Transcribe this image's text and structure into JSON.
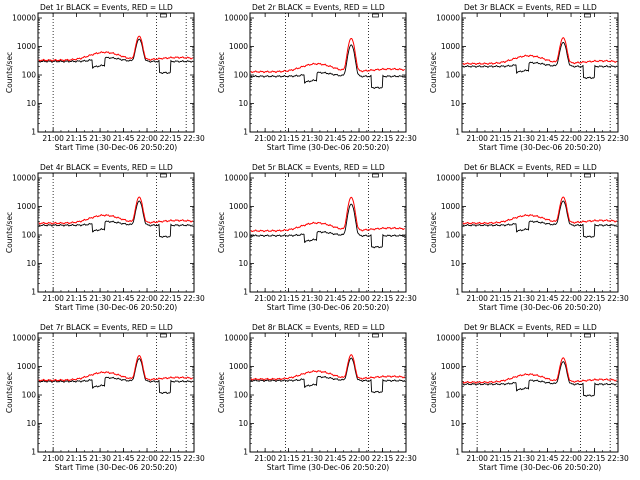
{
  "chart_data": {
    "type": "line",
    "grid": "3x3",
    "y_scale": "log",
    "ylim": [
      1,
      15000
    ],
    "xlim": [
      "20:50:20",
      "22:30:00"
    ],
    "yticks": [
      1,
      10,
      100,
      1000,
      10000
    ],
    "ytick_labels": [
      "1",
      "10",
      "100",
      "1000",
      "10000"
    ],
    "xtick_labels": [
      "21:00",
      "21:15",
      "21:30",
      "21:45",
      "22:00",
      "22:15",
      "22:30"
    ],
    "ylabel": "Counts/sec",
    "xlabel": "Start Time (30-Dec-06 20:50:20)",
    "series_colors": {
      "Events": "#000000",
      "LLD": "#ff0000"
    },
    "panels": [
      {
        "title": "Det 1r BLACK = Events, RED = LLD",
        "events_level": 300,
        "lld_level": 330,
        "peak": 2200,
        "markers": [
          "21:00",
          "22:06",
          "22:25"
        ]
      },
      {
        "title": "Det 2r BLACK = Events, RED = LLD",
        "events_level": 90,
        "lld_level": 130,
        "peak": 1400,
        "markers": [
          "21:13",
          "22:06"
        ]
      },
      {
        "title": "Det 3r BLACK = Events, RED = LLD",
        "events_level": 200,
        "lld_level": 250,
        "peak": 1700,
        "markers": [
          "22:06",
          "22:25"
        ]
      },
      {
        "title": "Det 4r BLACK = Events, RED = LLD",
        "events_level": 220,
        "lld_level": 260,
        "peak": 1900,
        "markers": [
          "21:00",
          "22:06"
        ]
      },
      {
        "title": "Det 5r BLACK = Events, RED = LLD",
        "events_level": 95,
        "lld_level": 140,
        "peak": 1500,
        "markers": [
          "21:13",
          "22:06"
        ]
      },
      {
        "title": "Det 6r BLACK = Events, RED = LLD",
        "events_level": 220,
        "lld_level": 260,
        "peak": 1900,
        "markers": [
          "22:06",
          "22:25"
        ]
      },
      {
        "title": "Det 7r BLACK = Events, RED = LLD",
        "events_level": 300,
        "lld_level": 330,
        "peak": 2300,
        "markers": [
          "21:00",
          "22:06",
          "22:25"
        ]
      },
      {
        "title": "Det 8r BLACK = Events, RED = LLD",
        "events_level": 320,
        "lld_level": 360,
        "peak": 2400,
        "markers": [
          "21:13",
          "22:06"
        ]
      },
      {
        "title": "Det 9r BLACK = Events, RED = LLD",
        "events_level": 240,
        "lld_level": 280,
        "peak": 1800,
        "markers": [
          "21:00",
          "22:06",
          "22:25"
        ]
      }
    ]
  }
}
